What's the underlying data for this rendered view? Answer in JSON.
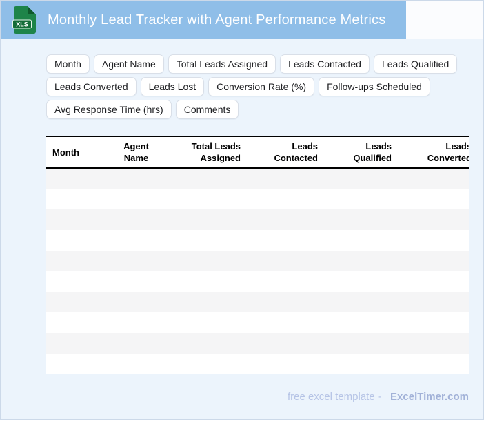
{
  "header": {
    "title": "Monthly Lead Tracker with Agent Performance Metrics",
    "icon": "xls-file-icon",
    "icon_label": "XLS",
    "bar_color": "#8FBEE8",
    "title_color": "#FFFFFF",
    "icon_color": "#1E8449",
    "icon_band_color": "#146C38"
  },
  "page": {
    "background_color": "#ECF4FC",
    "frame_border_color": "#CCD9E9"
  },
  "column_chips": [
    "Month",
    "Agent Name",
    "Total Leads Assigned",
    "Leads Contacted",
    "Leads Qualified",
    "Leads Converted",
    "Leads Lost",
    "Conversion Rate (%)",
    "Follow-ups Scheduled",
    "Avg Response Time (hrs)",
    "Comments"
  ],
  "table": {
    "columns": [
      {
        "label": "Month",
        "align": "left"
      },
      {
        "label": "Agent Name",
        "align": "center"
      },
      {
        "label": "Total Leads Assigned",
        "align": "right"
      },
      {
        "label": "Leads Contacted",
        "align": "right"
      },
      {
        "label": "Leads Qualified",
        "align": "right"
      },
      {
        "label": "Leads Converted",
        "align": "right",
        "clipped_at_right_edge": true
      }
    ],
    "visible_empty_rows": 10,
    "stripe_color": "#F5F5F6",
    "header_border_color": "#000000"
  },
  "footer": {
    "text": "free excel template -",
    "brand": "ExcelTimer.com",
    "text_color": "#B6C4E6",
    "brand_color": "#A2B2D8"
  }
}
